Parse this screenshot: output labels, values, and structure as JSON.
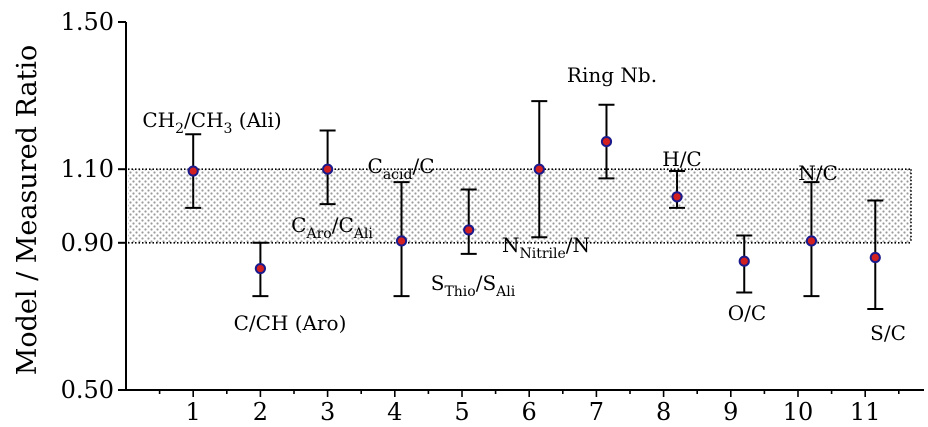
{
  "chart_data": {
    "type": "scatter",
    "title": "",
    "xlabel": "",
    "ylabel": "Model / Measured  Ratio",
    "xlim": [
      0,
      11.5
    ],
    "ylim": [
      0.5,
      1.5
    ],
    "x_ticks": [
      "1",
      "2",
      "3",
      "4",
      "5",
      "6",
      "7",
      "8",
      "9",
      "10",
      "11"
    ],
    "y_ticks": [
      "0.50",
      "0.90",
      "1.10",
      "1.50"
    ],
    "band": {
      "from": 0.9,
      "to": 1.1,
      "pattern": "dotted",
      "color": "#888888"
    },
    "marker_color": "#d21f1f",
    "marker_edge_color": "#1a1a8c",
    "points": [
      {
        "x": 1,
        "y": 1.095,
        "err_low": 0.995,
        "err_high": 1.195,
        "label": [
          "CH",
          "2",
          "/CH",
          "3",
          " (Ali)"
        ]
      },
      {
        "x": 2,
        "y": 0.83,
        "err_low": 0.755,
        "err_high": 0.9,
        "label": [
          "C/CH (Aro)"
        ]
      },
      {
        "x": 3,
        "y": 1.1,
        "err_low": 1.005,
        "err_high": 1.205,
        "label": [
          "C",
          "Aro",
          "/C",
          "Ali"
        ]
      },
      {
        "x": 4.1,
        "y": 0.905,
        "err_low": 0.755,
        "err_high": 1.065,
        "label": [
          "C",
          "acid",
          "/C"
        ]
      },
      {
        "x": 5.1,
        "y": 0.935,
        "err_low": 0.87,
        "err_high": 1.045,
        "label": [
          "S",
          "Thio",
          "/S",
          "Ali"
        ]
      },
      {
        "x": 6.15,
        "y": 1.1,
        "err_low": 0.915,
        "err_high": 1.285,
        "label": [
          "N",
          "Nitrile",
          "/N"
        ]
      },
      {
        "x": 7.15,
        "y": 1.175,
        "err_low": 1.075,
        "err_high": 1.275,
        "label": [
          "Ring Nb."
        ]
      },
      {
        "x": 8.2,
        "y": 1.025,
        "err_low": 0.995,
        "err_high": 1.095,
        "label": [
          "H/C"
        ]
      },
      {
        "x": 9.2,
        "y": 0.85,
        "err_low": 0.765,
        "err_high": 0.92,
        "label": [
          "O/C"
        ]
      },
      {
        "x": 10.2,
        "y": 0.905,
        "err_low": 0.755,
        "err_high": 1.065,
        "label": [
          "N/C"
        ]
      },
      {
        "x": 11.15,
        "y": 0.86,
        "err_low": 0.72,
        "err_high": 1.015,
        "label": [
          "S/C"
        ]
      }
    ]
  }
}
